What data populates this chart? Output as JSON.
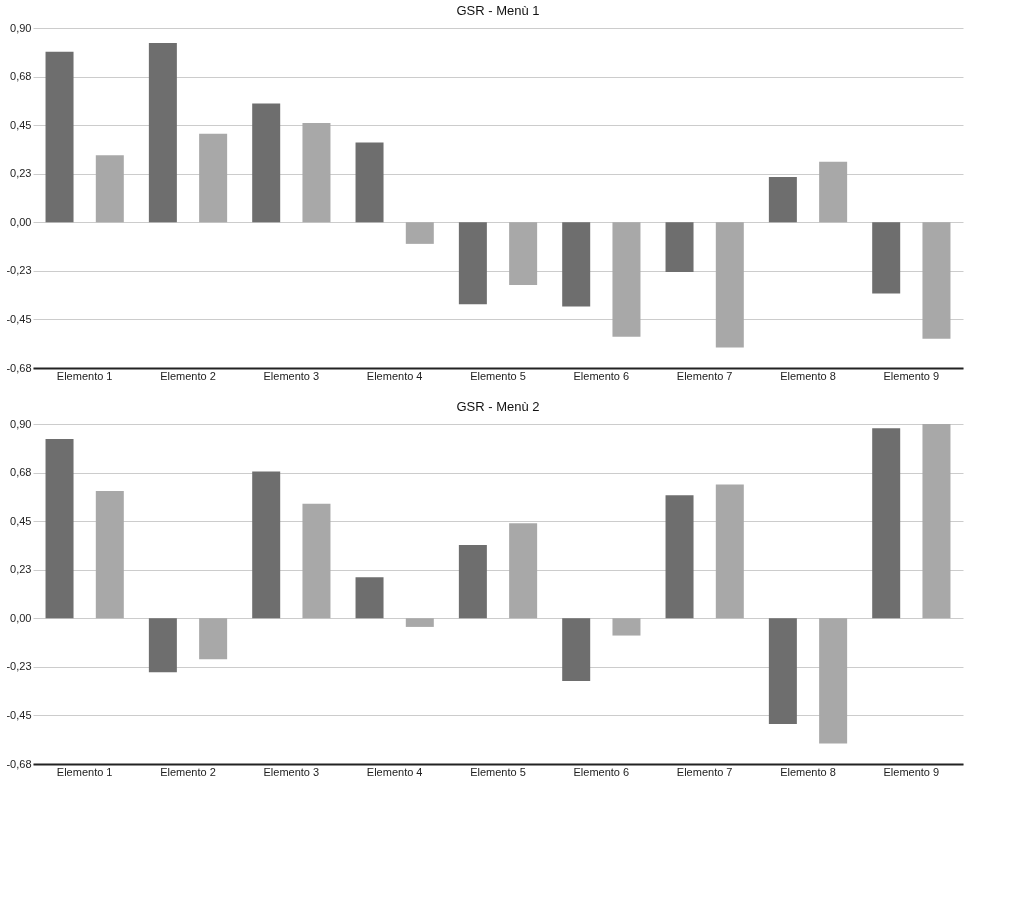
{
  "chart_data": [
    {
      "type": "bar",
      "title": "GSR - Menù 1",
      "categories": [
        "Elemento 1",
        "Elemento 2",
        "Elemento 3",
        "Elemento 4",
        "Elemento 5",
        "Elemento 6",
        "Elemento 7",
        "Elemento 8",
        "Elemento 9"
      ],
      "series": [
        {
          "color": "#6e6e6e",
          "values": [
            0.79,
            0.83,
            0.55,
            0.37,
            -0.38,
            -0.39,
            -0.23,
            0.21,
            -0.33
          ]
        },
        {
          "color": "#a8a8a8",
          "values": [
            0.31,
            0.41,
            0.46,
            -0.1,
            -0.29,
            -0.53,
            -0.58,
            0.28,
            -0.54
          ]
        }
      ],
      "ylim": [
        -0.675,
        0.9
      ],
      "yticks": [
        {
          "value": 0.9,
          "label": "0,90"
        },
        {
          "value": 0.675,
          "label": "0,68"
        },
        {
          "value": 0.45,
          "label": "0,45"
        },
        {
          "value": 0.225,
          "label": "0,23"
        },
        {
          "value": 0,
          "label": "0,00"
        },
        {
          "value": -0.225,
          "label": "-0,23"
        },
        {
          "value": -0.45,
          "label": "-0,45"
        },
        {
          "value": -0.675,
          "label": "-0,68"
        }
      ],
      "grid": "y"
    },
    {
      "type": "bar",
      "title": "GSR - Menù 2",
      "categories": [
        "Elemento 1",
        "Elemento 2",
        "Elemento 3",
        "Elemento 4",
        "Elemento 5",
        "Elemento 6",
        "Elemento 7",
        "Elemento 8",
        "Elemento 9"
      ],
      "series": [
        {
          "color": "#6e6e6e",
          "values": [
            0.83,
            -0.25,
            0.68,
            0.19,
            0.34,
            -0.29,
            0.57,
            -0.49,
            0.88
          ]
        },
        {
          "color": "#a8a8a8",
          "values": [
            0.59,
            -0.19,
            0.53,
            -0.04,
            0.44,
            -0.08,
            0.62,
            -0.58,
            0.9
          ]
        }
      ],
      "ylim": [
        -0.675,
        0.9
      ],
      "yticks": [
        {
          "value": 0.9,
          "label": "0,90"
        },
        {
          "value": 0.675,
          "label": "0,68"
        },
        {
          "value": 0.45,
          "label": "0,45"
        },
        {
          "value": 0.225,
          "label": "0,23"
        },
        {
          "value": 0,
          "label": "0,00"
        },
        {
          "value": -0.225,
          "label": "-0,23"
        },
        {
          "value": -0.45,
          "label": "-0,45"
        },
        {
          "value": -0.675,
          "label": "-0,68"
        }
      ],
      "grid": "y"
    }
  ]
}
